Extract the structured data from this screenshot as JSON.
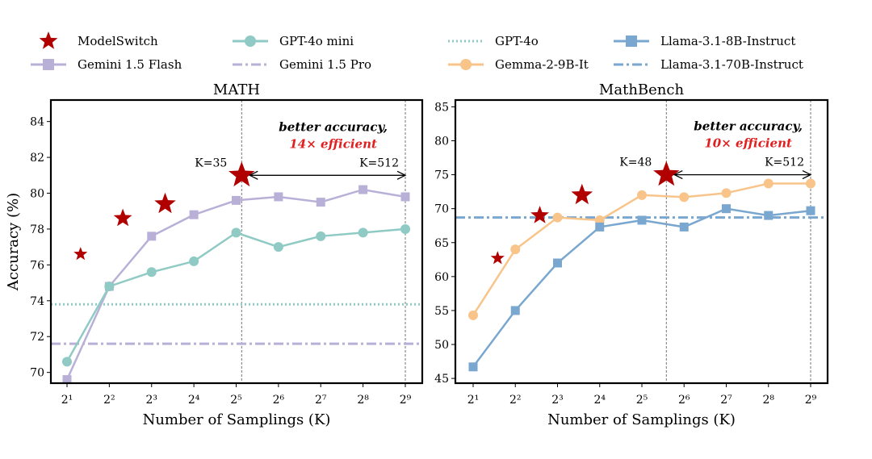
{
  "legend": [
    {
      "name": "ModelSwitch",
      "color": "#b00000",
      "marker": "star",
      "line": "none"
    },
    {
      "name": "GPT-4o mini",
      "color": "#8fcac4",
      "marker": "circle",
      "line": "solid"
    },
    {
      "name": "GPT-4o",
      "color": "#8fcac4",
      "marker": "none",
      "line": "dotted"
    },
    {
      "name": "Llama-3.1-8B-Instruct",
      "color": "#7aa7cf",
      "marker": "square",
      "line": "solid"
    },
    {
      "name": "Gemini 1.5 Flash",
      "color": "#b9b0d8",
      "marker": "square",
      "line": "solid"
    },
    {
      "name": "Gemini 1.5 Pro",
      "color": "#b9b0d8",
      "marker": "none",
      "line": "dashdot"
    },
    {
      "name": "Gemma-2-9B-It",
      "color": "#f8c48a",
      "marker": "circle",
      "line": "solid"
    },
    {
      "name": "Llama-3.1-70B-Instruct",
      "color": "#7aa7cf",
      "marker": "none",
      "line": "dashdot"
    }
  ],
  "chart_data": [
    {
      "type": "line",
      "title": "MATH",
      "xlabel": "Number of Samplings (K)",
      "ylabel": "Accuracy (%)",
      "x_log2": [
        1,
        2,
        3,
        4,
        5,
        6,
        7,
        8,
        9
      ],
      "x_tick_labels": [
        "2¹",
        "2²",
        "2³",
        "2⁴",
        "2⁵",
        "2⁶",
        "2⁷",
        "2⁸",
        "2⁹"
      ],
      "ylim": [
        69.4,
        85.2
      ],
      "y_ticks": [
        70,
        72,
        74,
        76,
        78,
        80,
        82,
        84
      ],
      "series": [
        {
          "name": "Gemini 1.5 Flash",
          "color": "#b9b0d8",
          "marker": "square",
          "x_log2": [
            1,
            2,
            3,
            4,
            5,
            6,
            7,
            8,
            9
          ],
          "values": [
            69.6,
            74.8,
            77.6,
            78.8,
            79.6,
            79.8,
            79.5,
            80.2,
            79.8
          ]
        },
        {
          "name": "GPT-4o mini",
          "color": "#8fcac4",
          "marker": "circle",
          "x_log2": [
            1,
            2,
            3,
            4,
            5,
            6,
            7,
            8,
            9
          ],
          "values": [
            70.6,
            74.8,
            75.6,
            76.2,
            77.8,
            77.0,
            77.6,
            77.8,
            78.0
          ]
        },
        {
          "name": "ModelSwitch",
          "color": "#b00000",
          "marker": "star",
          "x_log2": [
            1.32,
            2.32,
            3.32,
            5.13
          ],
          "values": [
            76.6,
            78.6,
            79.4,
            81.0
          ]
        }
      ],
      "hlines": [
        {
          "name": "GPT-4o",
          "y": 73.8,
          "color": "#8fcac4",
          "style": "dotted"
        },
        {
          "name": "Gemini 1.5 Pro",
          "y": 71.6,
          "color": "#b9b0d8",
          "style": "dashdot"
        }
      ],
      "annotation": {
        "from_log2": 5.13,
        "to_log2": 9,
        "y": 81.0,
        "left_label": "K=35",
        "right_label": "K=512",
        "line1": "better accuracy,",
        "line2": "14× efficient",
        "vlines_log2": [
          5.13,
          9
        ]
      }
    },
    {
      "type": "line",
      "title": "MathBench",
      "xlabel": "Number of Samplings (K)",
      "ylabel": "",
      "x_log2": [
        1,
        2,
        3,
        4,
        5,
        6,
        7,
        8,
        9
      ],
      "x_tick_labels": [
        "2¹",
        "2²",
        "2³",
        "2⁴",
        "2⁵",
        "2⁶",
        "2⁷",
        "2⁸",
        "2⁹"
      ],
      "ylim": [
        44.3,
        86
      ],
      "y_ticks": [
        45,
        50,
        55,
        60,
        65,
        70,
        75,
        80,
        85
      ],
      "series": [
        {
          "name": "Gemma-2-9B-It",
          "color": "#f8c48a",
          "marker": "circle",
          "x_log2": [
            1,
            2,
            3,
            4,
            5,
            6,
            7,
            8,
            9
          ],
          "values": [
            54.3,
            64.0,
            68.7,
            68.3,
            72.0,
            71.7,
            72.3,
            73.7,
            73.7
          ]
        },
        {
          "name": "Llama-3.1-8B-Instruct",
          "color": "#7aa7cf",
          "marker": "square",
          "x_log2": [
            1,
            2,
            3,
            4,
            5,
            6,
            7,
            8,
            9
          ],
          "values": [
            46.7,
            55.0,
            62.0,
            67.3,
            68.3,
            67.3,
            70.0,
            69.0,
            69.7
          ]
        },
        {
          "name": "ModelSwitch",
          "color": "#b00000",
          "marker": "star",
          "x_log2": [
            1.58,
            2.58,
            3.58,
            5.58
          ],
          "values": [
            62.7,
            69.0,
            72.0,
            75.0
          ]
        }
      ],
      "hlines": [
        {
          "name": "Llama-3.1-70B-Instruct",
          "y": 68.7,
          "color": "#7aa7cf",
          "style": "dashdot"
        }
      ],
      "annotation": {
        "from_log2": 5.58,
        "to_log2": 9,
        "y": 75.0,
        "left_label": "K=48",
        "right_label": "K=512",
        "line1": "better accuracy,",
        "line2": "10× efficient",
        "vlines_log2": [
          5.58,
          9
        ]
      }
    }
  ]
}
